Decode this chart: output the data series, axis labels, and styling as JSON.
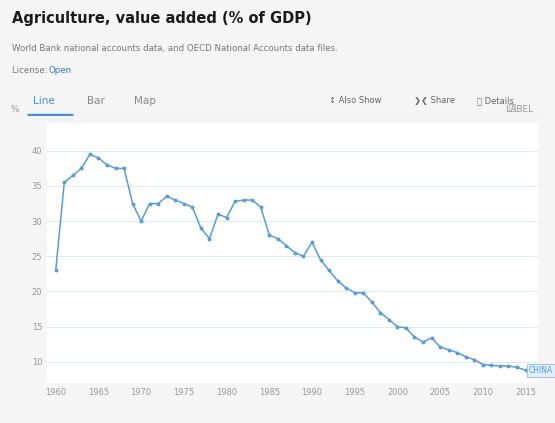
{
  "title": "Agriculture, value added (% of GDP)",
  "subtitle": "World Bank national accounts data, and OECD National Accounts data files.",
  "license_text": "License: ",
  "license_link": "Open",
  "tabs": [
    "Line",
    "Bar",
    "Map"
  ],
  "active_tab": "Line",
  "ylabel": "%",
  "label_text": "LABEL",
  "china_label": "CHINA",
  "bg_color": "#f5f5f5",
  "plot_bg_color": "#ffffff",
  "line_color": "#5b9bd5",
  "grid_color": "#dde8f0",
  "tab_line_color": "#4a90d9",
  "tab_bg_color": "#ffffff",
  "border_color": "#dddddd",
  "years": [
    1960,
    1961,
    1962,
    1963,
    1964,
    1965,
    1966,
    1967,
    1968,
    1969,
    1970,
    1971,
    1972,
    1973,
    1974,
    1975,
    1976,
    1977,
    1978,
    1979,
    1980,
    1981,
    1982,
    1983,
    1984,
    1985,
    1986,
    1987,
    1988,
    1989,
    1990,
    1991,
    1992,
    1993,
    1994,
    1995,
    1996,
    1997,
    1998,
    1999,
    2000,
    2001,
    2002,
    2003,
    2004,
    2005,
    2006,
    2007,
    2008,
    2009,
    2010,
    2011,
    2012,
    2013,
    2014,
    2015
  ],
  "values": [
    23.0,
    35.5,
    36.5,
    37.5,
    39.5,
    39.0,
    38.0,
    37.5,
    37.5,
    32.5,
    30.0,
    32.5,
    32.5,
    33.5,
    33.0,
    32.5,
    32.0,
    29.0,
    27.5,
    31.0,
    30.5,
    32.8,
    33.0,
    33.0,
    32.0,
    28.0,
    27.5,
    26.5,
    25.5,
    25.0,
    27.0,
    24.5,
    23.0,
    21.5,
    20.5,
    19.8,
    19.8,
    18.5,
    17.0,
    16.0,
    15.0,
    14.8,
    13.5,
    12.8,
    13.4,
    12.1,
    11.7,
    11.3,
    10.7,
    10.3,
    9.6,
    9.5,
    9.4,
    9.4,
    9.2,
    8.8
  ],
  "ylim": [
    7,
    44
  ],
  "yticks": [
    10,
    15,
    20,
    25,
    30,
    35,
    40
  ],
  "xlim": [
    1959,
    2016.5
  ],
  "xticks": [
    1960,
    1965,
    1970,
    1975,
    1980,
    1985,
    1990,
    1995,
    2000,
    2005,
    2010,
    2015
  ]
}
